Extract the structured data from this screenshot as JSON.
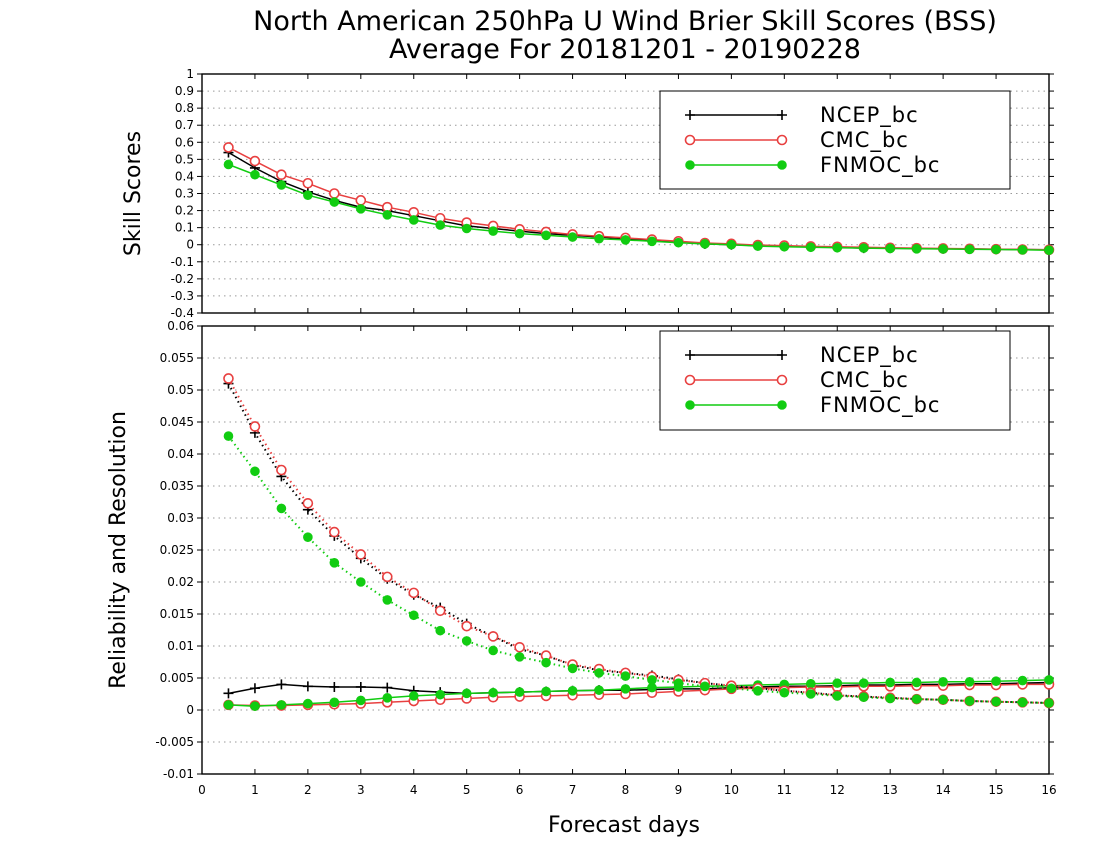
{
  "title_line1": "North American 250hPa U Wind Brier Skill Scores (BSS)",
  "title_line2": "Average For 20181201 - 20190228",
  "xlabel": "Forecast days",
  "colors": {
    "NCEP_bc": "#000000",
    "CMC_bc": "#e84040",
    "FNMOC_bc": "#11cc11"
  },
  "chart_data": [
    {
      "type": "line",
      "panel": "top",
      "ylabel": "Skill Scores",
      "xlim": [
        0,
        16
      ],
      "ylim": [
        -0.4,
        1
      ],
      "x_ticks": [
        0,
        1,
        2,
        3,
        4,
        5,
        6,
        7,
        8,
        9,
        10,
        11,
        12,
        13,
        14,
        15,
        16
      ],
      "y_ticks": [
        -0.4,
        -0.3,
        -0.2,
        -0.1,
        0,
        0.1,
        0.2,
        0.3,
        0.4,
        0.5,
        0.6,
        0.7,
        0.8,
        0.9,
        1
      ],
      "y_tick_labels": [
        "-0.4",
        "-0.3",
        "-0.2",
        "-0.1",
        "0",
        "0.1",
        "0.2",
        "0.3",
        "0.4",
        "0.5",
        "0.6",
        "0.7",
        "0.8",
        "0.9",
        "1"
      ],
      "grid": "horizontal dotted",
      "legend_position": "top-right",
      "legend": [
        "NCEP_bc",
        "CMC_bc",
        "FNMOC_bc"
      ],
      "x": [
        0.5,
        1,
        1.5,
        2,
        2.5,
        3,
        3.5,
        4,
        4.5,
        5,
        5.5,
        6,
        6.5,
        7,
        7.5,
        8,
        8.5,
        9,
        9.5,
        10,
        10.5,
        11,
        11.5,
        12,
        12.5,
        13,
        13.5,
        14,
        14.5,
        15,
        15.5,
        16
      ],
      "series": [
        {
          "name": "NCEP_bc",
          "marker": "plus",
          "values": [
            0.54,
            0.45,
            0.37,
            0.31,
            0.26,
            0.22,
            0.2,
            0.17,
            0.14,
            0.11,
            0.095,
            0.08,
            0.065,
            0.055,
            0.045,
            0.035,
            0.025,
            0.015,
            0.005,
            0.0,
            -0.005,
            -0.01,
            -0.012,
            -0.015,
            -0.02,
            -0.02,
            -0.022,
            -0.024,
            -0.025,
            -0.027,
            -0.028,
            -0.03
          ]
        },
        {
          "name": "CMC_bc",
          "marker": "open-circle",
          "values": [
            0.57,
            0.49,
            0.41,
            0.36,
            0.3,
            0.26,
            0.22,
            0.19,
            0.155,
            0.13,
            0.11,
            0.09,
            0.075,
            0.06,
            0.05,
            0.04,
            0.03,
            0.02,
            0.01,
            0.005,
            -0.002,
            -0.005,
            -0.01,
            -0.012,
            -0.015,
            -0.018,
            -0.02,
            -0.022,
            -0.024,
            -0.026,
            -0.028,
            -0.03
          ]
        },
        {
          "name": "FNMOC_bc",
          "marker": "filled-circle",
          "values": [
            0.47,
            0.41,
            0.35,
            0.29,
            0.25,
            0.21,
            0.175,
            0.145,
            0.115,
            0.095,
            0.08,
            0.065,
            0.055,
            0.045,
            0.035,
            0.028,
            0.02,
            0.012,
            0.005,
            0.0,
            -0.008,
            -0.012,
            -0.015,
            -0.018,
            -0.02,
            -0.022,
            -0.024,
            -0.025,
            -0.027,
            -0.028,
            -0.03,
            -0.032
          ]
        }
      ]
    },
    {
      "type": "line",
      "panel": "bottom",
      "ylabel": "Reliability and Resolution",
      "xlim": [
        0,
        16
      ],
      "ylim": [
        -0.01,
        0.06
      ],
      "x_ticks": [
        0,
        1,
        2,
        3,
        4,
        5,
        6,
        7,
        8,
        9,
        10,
        11,
        12,
        13,
        14,
        15,
        16
      ],
      "x_tick_labels": [
        "0",
        "1",
        "2",
        "3",
        "4",
        "5",
        "6",
        "7",
        "8",
        "9",
        "10",
        "11",
        "12",
        "13",
        "14",
        "15",
        "16"
      ],
      "y_ticks": [
        -0.01,
        -0.005,
        0,
        0.005,
        0.01,
        0.015,
        0.02,
        0.025,
        0.03,
        0.035,
        0.04,
        0.045,
        0.05,
        0.055,
        0.06
      ],
      "y_tick_labels": [
        "-0.01",
        "-0.005",
        "0",
        "0.005",
        "0.01",
        "0.015",
        "0.02",
        "0.025",
        "0.03",
        "0.035",
        "0.04",
        "0.045",
        "0.05",
        "0.055",
        "0.06"
      ],
      "grid": "horizontal dotted",
      "legend_position": "top-right",
      "legend": [
        "NCEP_bc",
        "CMC_bc",
        "FNMOC_bc"
      ],
      "x": [
        0.5,
        1,
        1.5,
        2,
        2.5,
        3,
        3.5,
        4,
        4.5,
        5,
        5.5,
        6,
        6.5,
        7,
        7.5,
        8,
        8.5,
        9,
        9.5,
        10,
        10.5,
        11,
        11.5,
        12,
        12.5,
        13,
        13.5,
        14,
        14.5,
        15,
        15.5,
        16
      ],
      "resolution_series": [
        {
          "name": "NCEP_bc",
          "marker": "plus",
          "values": [
            0.051,
            0.0433,
            0.0365,
            0.0313,
            0.0272,
            0.0237,
            0.0205,
            0.018,
            0.016,
            0.0135,
            0.0115,
            0.0095,
            0.0085,
            0.007,
            0.0062,
            0.0058,
            0.0054,
            0.0048,
            0.0042,
            0.0038,
            0.0034,
            0.003,
            0.0027,
            0.0023,
            0.0021,
            0.0019,
            0.0017,
            0.0016,
            0.0014,
            0.0013,
            0.0012,
            0.0011
          ]
        },
        {
          "name": "CMC_bc",
          "marker": "open-circle",
          "values": [
            0.0518,
            0.0443,
            0.0375,
            0.0323,
            0.0278,
            0.0243,
            0.0208,
            0.0183,
            0.0155,
            0.0131,
            0.0115,
            0.0098,
            0.0085,
            0.0071,
            0.0064,
            0.0058,
            0.0052,
            0.0047,
            0.0042,
            0.0038,
            0.0034,
            0.003,
            0.0027,
            0.0023,
            0.0021,
            0.0019,
            0.0017,
            0.0016,
            0.0014,
            0.0013,
            0.0012,
            0.0011
          ]
        },
        {
          "name": "FNMOC_bc",
          "marker": "filled-circle",
          "values": [
            0.0428,
            0.0373,
            0.0315,
            0.027,
            0.023,
            0.02,
            0.0172,
            0.0148,
            0.0124,
            0.0108,
            0.0093,
            0.0083,
            0.0074,
            0.0065,
            0.0058,
            0.0053,
            0.0047,
            0.0042,
            0.0037,
            0.0034,
            0.003,
            0.0027,
            0.0025,
            0.0022,
            0.002,
            0.0018,
            0.0017,
            0.0016,
            0.0014,
            0.0013,
            0.0012,
            0.0011
          ]
        }
      ],
      "reliability_series": [
        {
          "name": "NCEP_bc",
          "marker": "plus",
          "values": [
            0.0026,
            0.0034,
            0.004,
            0.0037,
            0.0036,
            0.0036,
            0.0035,
            0.003,
            0.0028,
            0.0026,
            0.0027,
            0.0028,
            0.0029,
            0.003,
            0.0031,
            0.0031,
            0.0032,
            0.0033,
            0.0033,
            0.0035,
            0.0036,
            0.0037,
            0.0037,
            0.0038,
            0.0039,
            0.0039,
            0.004,
            0.004,
            0.0041,
            0.0041,
            0.0042,
            0.0043
          ]
        },
        {
          "name": "CMC_bc",
          "marker": "open-circle",
          "values": [
            0.0008,
            0.0007,
            0.0007,
            0.0008,
            0.0009,
            0.001,
            0.0012,
            0.0014,
            0.0016,
            0.0018,
            0.002,
            0.0021,
            0.0022,
            0.0023,
            0.0024,
            0.0025,
            0.0027,
            0.0029,
            0.0031,
            0.0033,
            0.0034,
            0.0035,
            0.0036,
            0.0036,
            0.0037,
            0.0037,
            0.0038,
            0.0038,
            0.0039,
            0.0039,
            0.004,
            0.004
          ]
        },
        {
          "name": "FNMOC_bc",
          "marker": "filled-circle",
          "values": [
            0.0008,
            0.0006,
            0.0008,
            0.001,
            0.0012,
            0.0015,
            0.0019,
            0.0022,
            0.0024,
            0.0026,
            0.0027,
            0.0028,
            0.0029,
            0.003,
            0.0031,
            0.0033,
            0.0035,
            0.0036,
            0.0037,
            0.0038,
            0.0039,
            0.004,
            0.0041,
            0.0042,
            0.0042,
            0.0043,
            0.0043,
            0.0044,
            0.0044,
            0.0045,
            0.0046,
            0.0047
          ]
        }
      ]
    }
  ]
}
